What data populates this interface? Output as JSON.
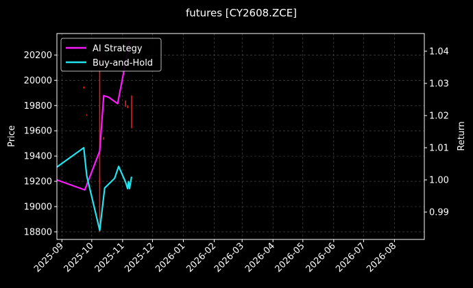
{
  "chart_data": {
    "type": "line",
    "title": "futures [CY2608.ZCE]",
    "ylabel_left": "Price",
    "ylabel_right": "Return",
    "ylim_left": [
      18740,
      20370
    ],
    "ylim_right": [
      0.9815,
      1.0455
    ],
    "xlim": [
      "2025-08-27",
      "2026-08-31"
    ],
    "left_ticks": [
      "18800",
      "19000",
      "19200",
      "19400",
      "19600",
      "19800",
      "20000",
      "20200"
    ],
    "right_ticks": [
      "0.99",
      "1.00",
      "1.01",
      "1.02",
      "1.03",
      "1.04"
    ],
    "x_ticks": [
      "2025-09",
      "2025-10",
      "2025-11",
      "2025-12",
      "2026-01",
      "2026-02",
      "2026-03",
      "2026-04",
      "2026-05",
      "2026-06",
      "2026-07",
      "2026-08"
    ],
    "grid": true,
    "legend_position": "top-left",
    "colors": {
      "background": "#000000",
      "ai_strategy": "#ff1aff",
      "buy_and_hold": "#22e5f0",
      "candles": "#ff1a1a",
      "grid": "#555555",
      "axis": "#ffffff"
    },
    "series": [
      {
        "name": "AI Strategy",
        "axis": "right",
        "points": [
          {
            "date": "2025-08-27",
            "value": 1.0
          },
          {
            "date": "2025-09-24",
            "value": 0.9969
          },
          {
            "date": "2025-10-09",
            "value": 1.009
          },
          {
            "date": "2025-10-13",
            "value": 1.0262
          },
          {
            "date": "2025-10-18",
            "value": 1.0257
          },
          {
            "date": "2025-10-27",
            "value": 1.0237
          },
          {
            "date": "2025-11-08",
            "value": 1.043
          }
        ]
      },
      {
        "name": "Buy-and-Hold",
        "axis": "right",
        "points": [
          {
            "date": "2025-08-27",
            "value": 1.004
          },
          {
            "date": "2025-09-23",
            "value": 1.01
          },
          {
            "date": "2025-09-26",
            "value": 1.0012
          },
          {
            "date": "2025-10-09",
            "value": 0.9843
          },
          {
            "date": "2025-10-14",
            "value": 0.9975
          },
          {
            "date": "2025-10-24",
            "value": 1.0005
          },
          {
            "date": "2025-10-28",
            "value": 1.0042
          },
          {
            "date": "2025-11-04",
            "value": 0.9993
          },
          {
            "date": "2025-11-06",
            "value": 0.9973
          },
          {
            "date": "2025-11-07",
            "value": 0.9995
          },
          {
            "date": "2025-11-08",
            "value": 0.9973
          },
          {
            "date": "2025-11-10",
            "value": 1.001
          }
        ]
      }
    ],
    "candles": [
      {
        "date": "2025-09-23",
        "low": 19935,
        "high": 19950
      },
      {
        "date": "2025-09-26",
        "low": 19720,
        "high": 19730
      },
      {
        "date": "2025-10-09",
        "low": 18800,
        "high": 20270
      },
      {
        "date": "2025-10-09",
        "low": 19180,
        "high": 19230
      },
      {
        "date": "2025-10-13",
        "low": 19530,
        "high": 19550
      },
      {
        "date": "2025-11-04",
        "low": 19790,
        "high": 19840
      },
      {
        "date": "2025-11-06",
        "low": 19780,
        "high": 19800
      },
      {
        "date": "2025-11-10",
        "low": 19620,
        "high": 19880
      }
    ]
  }
}
